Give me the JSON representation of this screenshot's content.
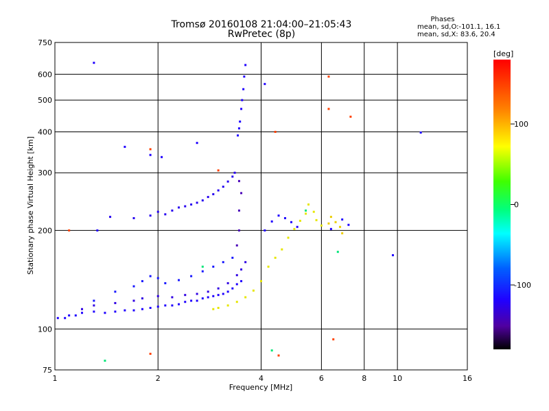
{
  "chart_data": {
    "type": "scatter",
    "title": "Tromsø 20160108 21:04:00–21:05:43",
    "subtitle": "RwPretec (8p)",
    "xlabel": "Frequency [MHz]",
    "ylabel": "Stationary phase Virtual Height [km]",
    "x_scale": "log",
    "y_scale": "log",
    "xlim": [
      1,
      16
    ],
    "ylim": [
      75,
      750
    ],
    "x_ticks": [
      1,
      2,
      4,
      6,
      8,
      10,
      16
    ],
    "y_ticks": [
      75,
      100,
      200,
      300,
      400,
      500,
      600,
      750
    ],
    "grid": true,
    "legend": {
      "title": "Phases",
      "line1": "mean, sd,O:-101.1, 16.1",
      "line2": "mean, sd,X:  83.6, 20.4"
    },
    "colorbar": {
      "label": "[deg]",
      "ticks": [
        100,
        0,
        -100
      ],
      "range": [
        -180,
        180
      ]
    },
    "series": [
      {
        "color_value": -100,
        "points": [
          [
            1.02,
            108
          ],
          [
            1.07,
            108
          ],
          [
            1.1,
            110
          ],
          [
            1.15,
            110
          ],
          [
            1.2,
            112
          ],
          [
            1.3,
            113
          ],
          [
            1.4,
            112
          ],
          [
            1.5,
            113
          ],
          [
            1.6,
            114
          ],
          [
            1.7,
            114
          ],
          [
            1.8,
            115
          ],
          [
            1.9,
            116
          ],
          [
            2.0,
            117
          ],
          [
            2.1,
            118
          ],
          [
            2.2,
            118
          ],
          [
            2.3,
            119
          ],
          [
            2.4,
            121
          ],
          [
            2.5,
            122
          ],
          [
            2.6,
            122
          ],
          [
            2.7,
            124
          ],
          [
            2.8,
            125
          ],
          [
            2.9,
            126
          ],
          [
            3.0,
            127
          ],
          [
            3.1,
            128
          ],
          [
            3.2,
            130
          ],
          [
            3.3,
            133
          ],
          [
            3.4,
            137
          ],
          [
            3.5,
            140
          ]
        ]
      },
      {
        "color_value": -110,
        "points": [
          [
            1.2,
            115
          ],
          [
            1.3,
            118
          ],
          [
            1.5,
            120
          ],
          [
            1.7,
            122
          ],
          [
            1.8,
            124
          ],
          [
            2.0,
            126
          ],
          [
            2.2,
            125
          ],
          [
            2.4,
            127
          ],
          [
            2.6,
            128
          ],
          [
            2.8,
            130
          ],
          [
            3.0,
            133
          ],
          [
            3.2,
            138
          ],
          [
            3.4,
            146
          ],
          [
            3.5,
            152
          ],
          [
            3.6,
            160
          ]
        ]
      },
      {
        "color_value": -95,
        "points": [
          [
            1.3,
            122
          ],
          [
            1.5,
            130
          ],
          [
            1.7,
            135
          ],
          [
            1.8,
            140
          ],
          [
            1.9,
            145
          ],
          [
            2.0,
            143
          ],
          [
            2.1,
            138
          ],
          [
            2.3,
            141
          ],
          [
            2.5,
            145
          ],
          [
            2.7,
            150
          ],
          [
            2.9,
            155
          ],
          [
            3.1,
            160
          ],
          [
            3.3,
            165
          ]
        ]
      },
      {
        "color_value": -105,
        "points": [
          [
            1.45,
            220
          ],
          [
            1.7,
            218
          ],
          [
            1.9,
            222
          ],
          [
            2.0,
            228
          ],
          [
            2.1,
            224
          ],
          [
            2.2,
            230
          ],
          [
            2.3,
            235
          ],
          [
            2.4,
            237
          ],
          [
            2.5,
            240
          ],
          [
            2.6,
            243
          ],
          [
            2.7,
            247
          ],
          [
            2.8,
            253
          ],
          [
            2.9,
            258
          ],
          [
            3.0,
            265
          ],
          [
            3.1,
            272
          ],
          [
            3.2,
            282
          ],
          [
            3.3,
            292
          ],
          [
            3.35,
            300
          ]
        ]
      },
      {
        "color_value": -125,
        "points": [
          [
            3.4,
            180
          ],
          [
            3.45,
            200
          ],
          [
            3.45,
            230
          ],
          [
            3.5,
            260
          ],
          [
            3.45,
            283
          ]
        ]
      },
      {
        "color_value": -100,
        "points": [
          [
            3.42,
            390
          ],
          [
            3.45,
            410
          ],
          [
            3.47,
            430
          ],
          [
            3.5,
            470
          ],
          [
            3.52,
            500
          ],
          [
            3.55,
            540
          ],
          [
            3.57,
            590
          ],
          [
            3.6,
            640
          ]
        ]
      },
      {
        "color_value": 100,
        "points": [
          [
            2.9,
            115
          ],
          [
            3.0,
            116
          ],
          [
            3.2,
            118
          ],
          [
            3.4,
            121
          ],
          [
            3.6,
            125
          ],
          [
            3.8,
            131
          ],
          [
            4.0,
            140
          ],
          [
            4.2,
            155
          ],
          [
            4.4,
            165
          ],
          [
            4.6,
            175
          ],
          [
            4.8,
            190
          ],
          [
            5.0,
            202
          ],
          [
            5.2,
            214
          ],
          [
            5.4,
            225
          ],
          [
            5.5,
            240
          ],
          [
            5.7,
            228
          ],
          [
            5.8,
            215
          ],
          [
            6.0,
            207
          ]
        ]
      },
      {
        "color_value": 105,
        "points": [
          [
            6.3,
            210
          ],
          [
            6.4,
            220
          ],
          [
            6.6,
            212
          ],
          [
            6.8,
            205
          ],
          [
            6.9,
            196
          ]
        ]
      },
      {
        "color_value": -100,
        "points": [
          [
            4.1,
            200
          ],
          [
            4.3,
            213
          ],
          [
            4.5,
            222
          ],
          [
            4.7,
            218
          ],
          [
            4.9,
            212
          ],
          [
            5.1,
            205
          ],
          [
            6.4,
            202
          ],
          [
            6.9,
            216
          ],
          [
            7.2,
            208
          ]
        ]
      },
      {
        "color_value": -100,
        "points": [
          [
            1.3,
            650
          ],
          [
            1.6,
            360
          ],
          [
            1.9,
            340
          ],
          [
            2.05,
            335
          ],
          [
            2.6,
            370
          ],
          [
            4.1,
            560
          ],
          [
            9.7,
            168
          ],
          [
            11.7,
            398
          ],
          [
            1.33,
            200
          ]
        ]
      },
      {
        "color_value": 150,
        "points": [
          [
            1.1,
            200
          ],
          [
            1.9,
            354
          ],
          [
            3.0,
            305
          ],
          [
            4.4,
            400
          ],
          [
            6.3,
            470
          ],
          [
            6.3,
            590
          ],
          [
            4.5,
            83
          ],
          [
            6.5,
            93
          ],
          [
            1.9,
            84
          ],
          [
            7.3,
            445
          ]
        ]
      },
      {
        "color_value": 0,
        "points": [
          [
            1.4,
            80
          ],
          [
            2.7,
            155
          ],
          [
            4.3,
            86
          ],
          [
            5.4,
            230
          ],
          [
            6.7,
            172
          ]
        ]
      }
    ]
  }
}
